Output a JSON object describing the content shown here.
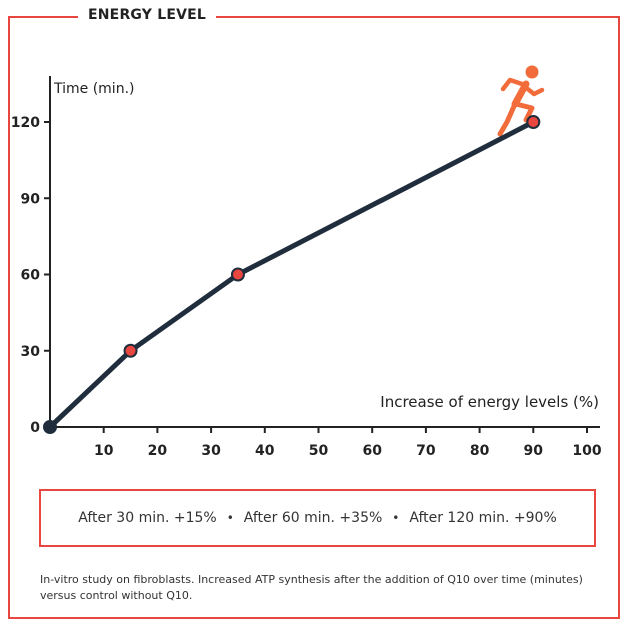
{
  "title": "ENERGY LEVEL",
  "chart_data": {
    "type": "line",
    "ylabel": "Time (min.)",
    "xlabel": "Increase of energy levels (%)",
    "x_ticks": [
      10,
      20,
      30,
      40,
      50,
      60,
      70,
      80,
      90,
      100
    ],
    "y_ticks": [
      0,
      30,
      60,
      90,
      120
    ],
    "xlim": [
      0,
      100
    ],
    "ylim": [
      0,
      120
    ],
    "series": [
      {
        "x": [
          0,
          15,
          35,
          90
        ],
        "y": [
          0,
          30,
          60,
          120
        ],
        "color": "#1f2d3d"
      }
    ],
    "marker_color": "#e8463e",
    "grid": false
  },
  "summary": {
    "items": [
      "After 30 min.  +15%",
      "After 60 min.  +35%",
      "After 120  min.  +90%"
    ],
    "separator": "•"
  },
  "footnote": "In-vitro study on fibroblasts. Increased ATP synthesis after the addition of Q10 over time (minutes) versus control without Q10.",
  "icon": "runner-icon",
  "colors": {
    "accent": "#e8463e",
    "runner": "#f26b3a",
    "line": "#1f2d3d"
  }
}
